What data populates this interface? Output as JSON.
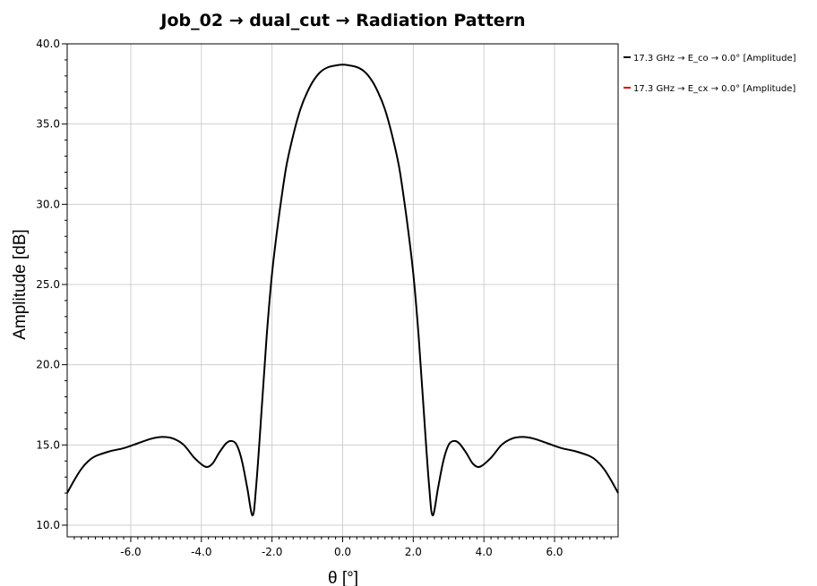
{
  "chart_data": {
    "type": "line",
    "title": "Job_02 → dual_cut → Radiation Pattern",
    "xlabel": "θ [°]",
    "ylabel": "Amplitude [dB]",
    "xlim": [
      -7.8,
      7.8
    ],
    "ylim": [
      9.5,
      40.0
    ],
    "x_ticks": [
      -6.0,
      -4.0,
      -2.0,
      0.0,
      2.0,
      4.0,
      6.0
    ],
    "x_tick_labels": [
      "-6.0",
      "-4.0",
      "-2.0",
      "0.0",
      "2.0",
      "4.0",
      "6.0"
    ],
    "y_ticks": [
      10.0,
      15.0,
      20.0,
      25.0,
      30.0,
      35.0,
      40.0
    ],
    "y_tick_labels": [
      "10.0",
      "15.0",
      "20.0",
      "25.0",
      "30.0",
      "35.0",
      "40.0"
    ],
    "grid": true,
    "legend_position": "top-right",
    "series": [
      {
        "name": "17.3 GHz → E_co → 0.0° [Amplitude]",
        "color": "#000000",
        "points": [
          [
            -7.8,
            12.0
          ],
          [
            -7.6,
            12.8
          ],
          [
            -7.4,
            13.5
          ],
          [
            -7.2,
            14.0
          ],
          [
            -7.0,
            14.3
          ],
          [
            -6.6,
            14.6
          ],
          [
            -6.2,
            14.8
          ],
          [
            -5.8,
            15.1
          ],
          [
            -5.4,
            15.4
          ],
          [
            -5.1,
            15.5
          ],
          [
            -4.8,
            15.4
          ],
          [
            -4.5,
            15.0
          ],
          [
            -4.2,
            14.2
          ],
          [
            -3.9,
            13.65
          ],
          [
            -3.7,
            13.8
          ],
          [
            -3.5,
            14.5
          ],
          [
            -3.3,
            15.1
          ],
          [
            -3.15,
            15.25
          ],
          [
            -3.0,
            15.0
          ],
          [
            -2.85,
            14.0
          ],
          [
            -2.7,
            12.3
          ],
          [
            -2.55,
            10.6
          ],
          [
            -2.45,
            12.4
          ],
          [
            -2.3,
            17.0
          ],
          [
            -2.15,
            21.8
          ],
          [
            -2.0,
            25.7
          ],
          [
            -1.8,
            29.3
          ],
          [
            -1.6,
            32.3
          ],
          [
            -1.4,
            34.3
          ],
          [
            -1.2,
            35.9
          ],
          [
            -1.0,
            37.0
          ],
          [
            -0.8,
            37.8
          ],
          [
            -0.6,
            38.3
          ],
          [
            -0.4,
            38.55
          ],
          [
            -0.2,
            38.65
          ],
          [
            0.0,
            38.7
          ],
          [
            0.2,
            38.65
          ],
          [
            0.4,
            38.55
          ],
          [
            0.6,
            38.3
          ],
          [
            0.8,
            37.8
          ],
          [
            1.0,
            37.0
          ],
          [
            1.2,
            35.9
          ],
          [
            1.4,
            34.3
          ],
          [
            1.6,
            32.3
          ],
          [
            1.8,
            29.3
          ],
          [
            2.0,
            25.7
          ],
          [
            2.15,
            21.8
          ],
          [
            2.3,
            17.0
          ],
          [
            2.45,
            12.4
          ],
          [
            2.55,
            10.6
          ],
          [
            2.7,
            12.3
          ],
          [
            2.85,
            14.0
          ],
          [
            3.0,
            15.0
          ],
          [
            3.15,
            15.25
          ],
          [
            3.3,
            15.1
          ],
          [
            3.5,
            14.5
          ],
          [
            3.7,
            13.8
          ],
          [
            3.9,
            13.65
          ],
          [
            4.2,
            14.2
          ],
          [
            4.5,
            15.0
          ],
          [
            4.8,
            15.4
          ],
          [
            5.1,
            15.5
          ],
          [
            5.4,
            15.4
          ],
          [
            5.8,
            15.1
          ],
          [
            6.2,
            14.8
          ],
          [
            6.6,
            14.6
          ],
          [
            7.0,
            14.3
          ],
          [
            7.2,
            14.0
          ],
          [
            7.4,
            13.5
          ],
          [
            7.6,
            12.8
          ],
          [
            7.8,
            12.0
          ]
        ]
      },
      {
        "name": "17.3 GHz → E_cx → 0.0° [Amplitude]",
        "color": "#e00000",
        "points": []
      }
    ]
  }
}
